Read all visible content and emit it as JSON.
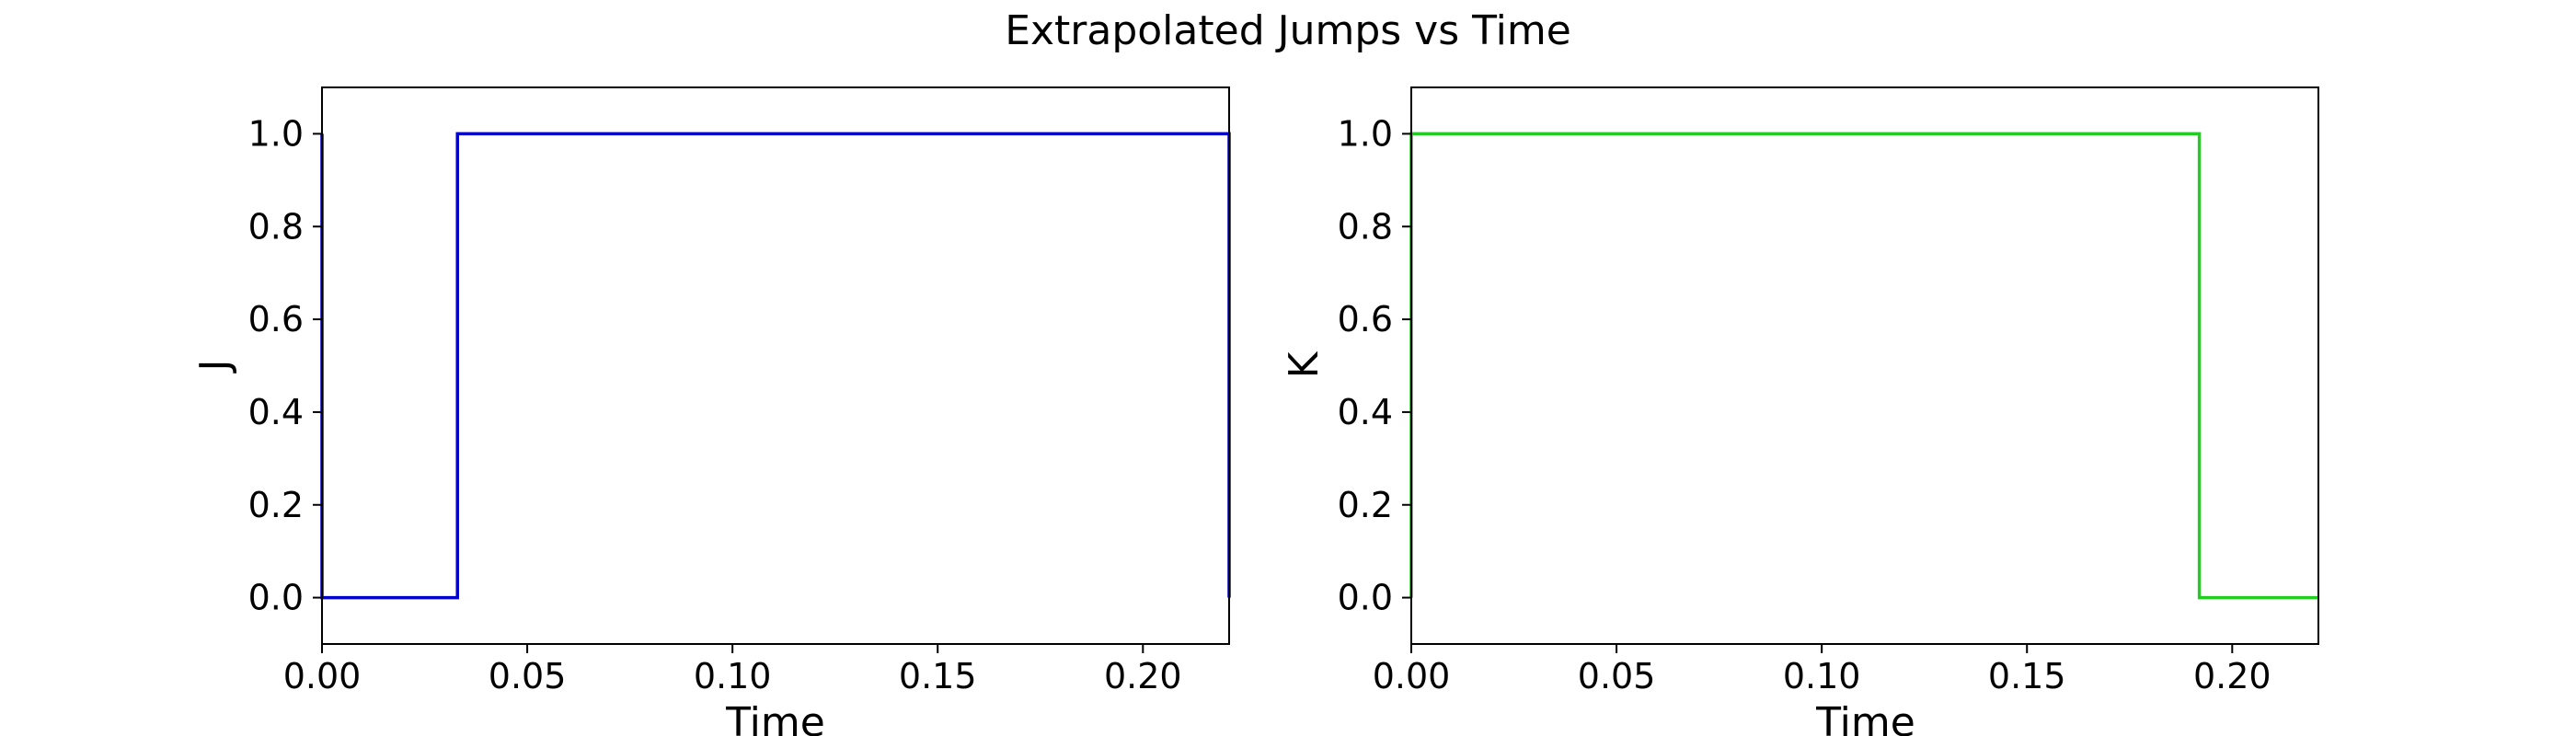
{
  "figure": {
    "title": "Extrapolated Jumps vs Time"
  },
  "chart_data": [
    {
      "type": "line",
      "xlabel": "Time",
      "ylabel": "J",
      "xlim": [
        0,
        0.221
      ],
      "ylim": [
        -0.1,
        1.1
      ],
      "xticks": [
        0.0,
        0.05,
        0.1,
        0.15,
        0.2
      ],
      "xtick_labels": [
        "0.00",
        "0.05",
        "0.10",
        "0.15",
        "0.20"
      ],
      "yticks": [
        0.0,
        0.2,
        0.4,
        0.6,
        0.8,
        1.0
      ],
      "ytick_labels": [
        "0.0",
        "0.2",
        "0.4",
        "0.6",
        "0.8",
        "1.0"
      ],
      "grid": false,
      "step": true,
      "color": "#0000cc",
      "x": [
        0.0,
        0.0,
        0.033,
        0.033,
        0.221,
        0.221
      ],
      "y": [
        1.0,
        0.0,
        0.0,
        1.0,
        1.0,
        0.0
      ]
    },
    {
      "type": "line",
      "xlabel": "Time",
      "ylabel": "K",
      "xlim": [
        0,
        0.221
      ],
      "ylim": [
        -0.1,
        1.1
      ],
      "xticks": [
        0.0,
        0.05,
        0.1,
        0.15,
        0.2
      ],
      "xtick_labels": [
        "0.00",
        "0.05",
        "0.10",
        "0.15",
        "0.20"
      ],
      "yticks": [
        0.0,
        0.2,
        0.4,
        0.6,
        0.8,
        1.0
      ],
      "ytick_labels": [
        "0.0",
        "0.2",
        "0.4",
        "0.6",
        "0.8",
        "1.0"
      ],
      "grid": false,
      "step": true,
      "color": "#22cc22",
      "x": [
        0.0,
        0.0,
        0.192,
        0.192,
        0.221
      ],
      "y": [
        0.0,
        1.0,
        1.0,
        0.0,
        0.0
      ]
    }
  ]
}
